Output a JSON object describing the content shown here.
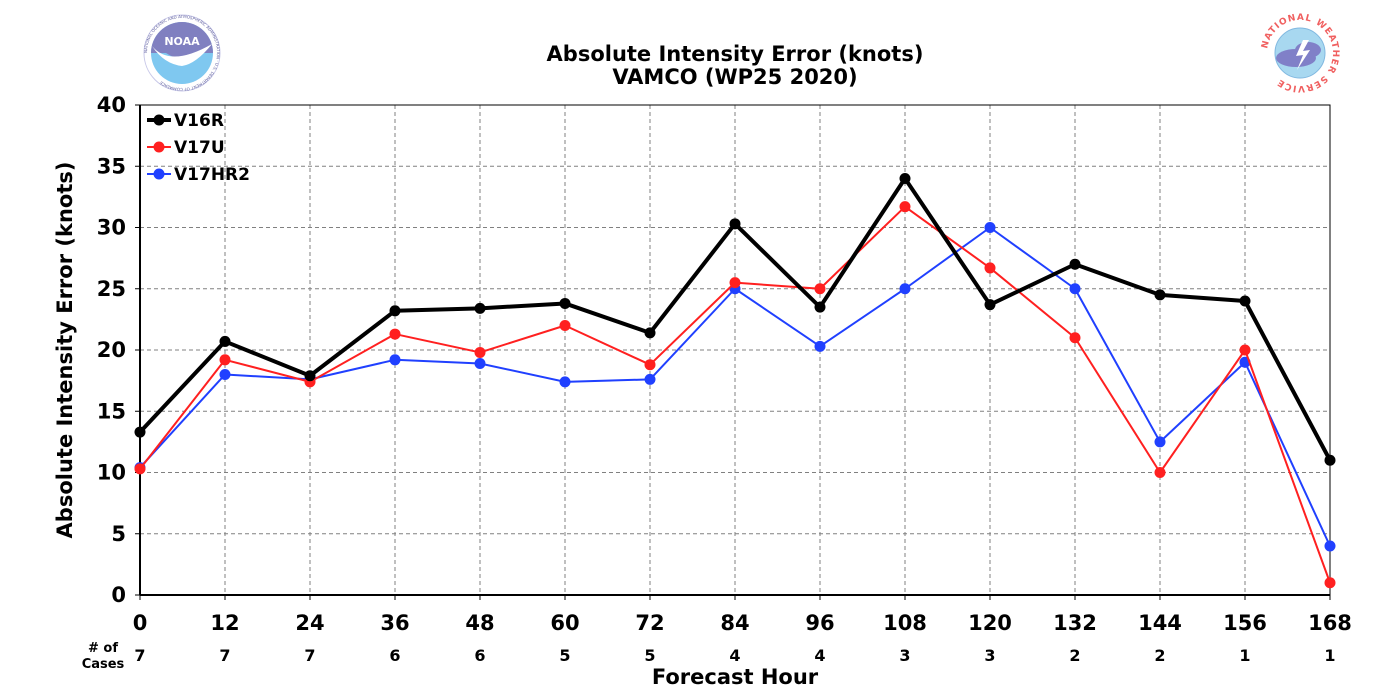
{
  "chart_data": {
    "type": "line",
    "title": "Absolute Intensity Error (knots)",
    "subtitle": "VAMCO (WP25 2020)",
    "xlabel": "Forecast Hour",
    "ylabel": "Absolute Intensity Error (knots)",
    "x": [
      0,
      12,
      24,
      36,
      48,
      60,
      72,
      84,
      96,
      108,
      120,
      132,
      144,
      156,
      168
    ],
    "xlim": [
      0,
      168
    ],
    "ylim": [
      0,
      40
    ],
    "yticks": [
      0,
      5,
      10,
      15,
      20,
      25,
      30,
      35,
      40
    ],
    "grid": true,
    "legend_position": "top-left",
    "cases_label": "# of\nCases",
    "cases_label_lines": [
      "# of",
      "Cases"
    ],
    "cases": [
      7,
      7,
      7,
      6,
      6,
      5,
      5,
      4,
      4,
      3,
      3,
      2,
      2,
      1,
      1
    ],
    "series": [
      {
        "name": "V16R",
        "color": "#000000",
        "values": [
          13.3,
          20.7,
          17.9,
          23.2,
          23.4,
          23.8,
          21.4,
          30.3,
          23.5,
          34.0,
          23.7,
          27.0,
          24.5,
          24.0,
          11.0
        ]
      },
      {
        "name": "V17U",
        "color": "#ff2020",
        "values": [
          10.3,
          19.2,
          17.4,
          21.3,
          19.8,
          22.0,
          18.8,
          25.5,
          25.0,
          31.7,
          26.7,
          21.0,
          10.0,
          20.0,
          1.0
        ]
      },
      {
        "name": "V17HR2",
        "color": "#2040ff",
        "values": [
          10.4,
          18.0,
          17.6,
          19.2,
          18.9,
          17.4,
          17.6,
          25.0,
          20.3,
          25.0,
          30.0,
          25.0,
          12.5,
          19.0,
          4.0
        ]
      }
    ]
  },
  "logos": {
    "left": {
      "name": "noaa-logo",
      "text": "NOAA",
      "ring_text": "NATIONAL OCEANIC AND ATMOSPHERIC ADMINISTRATION · U.S. DEPARTMENT OF COMMERCE"
    },
    "right": {
      "name": "nws-logo",
      "ring_text": "NATIONAL WEATHER SERVICE"
    }
  }
}
